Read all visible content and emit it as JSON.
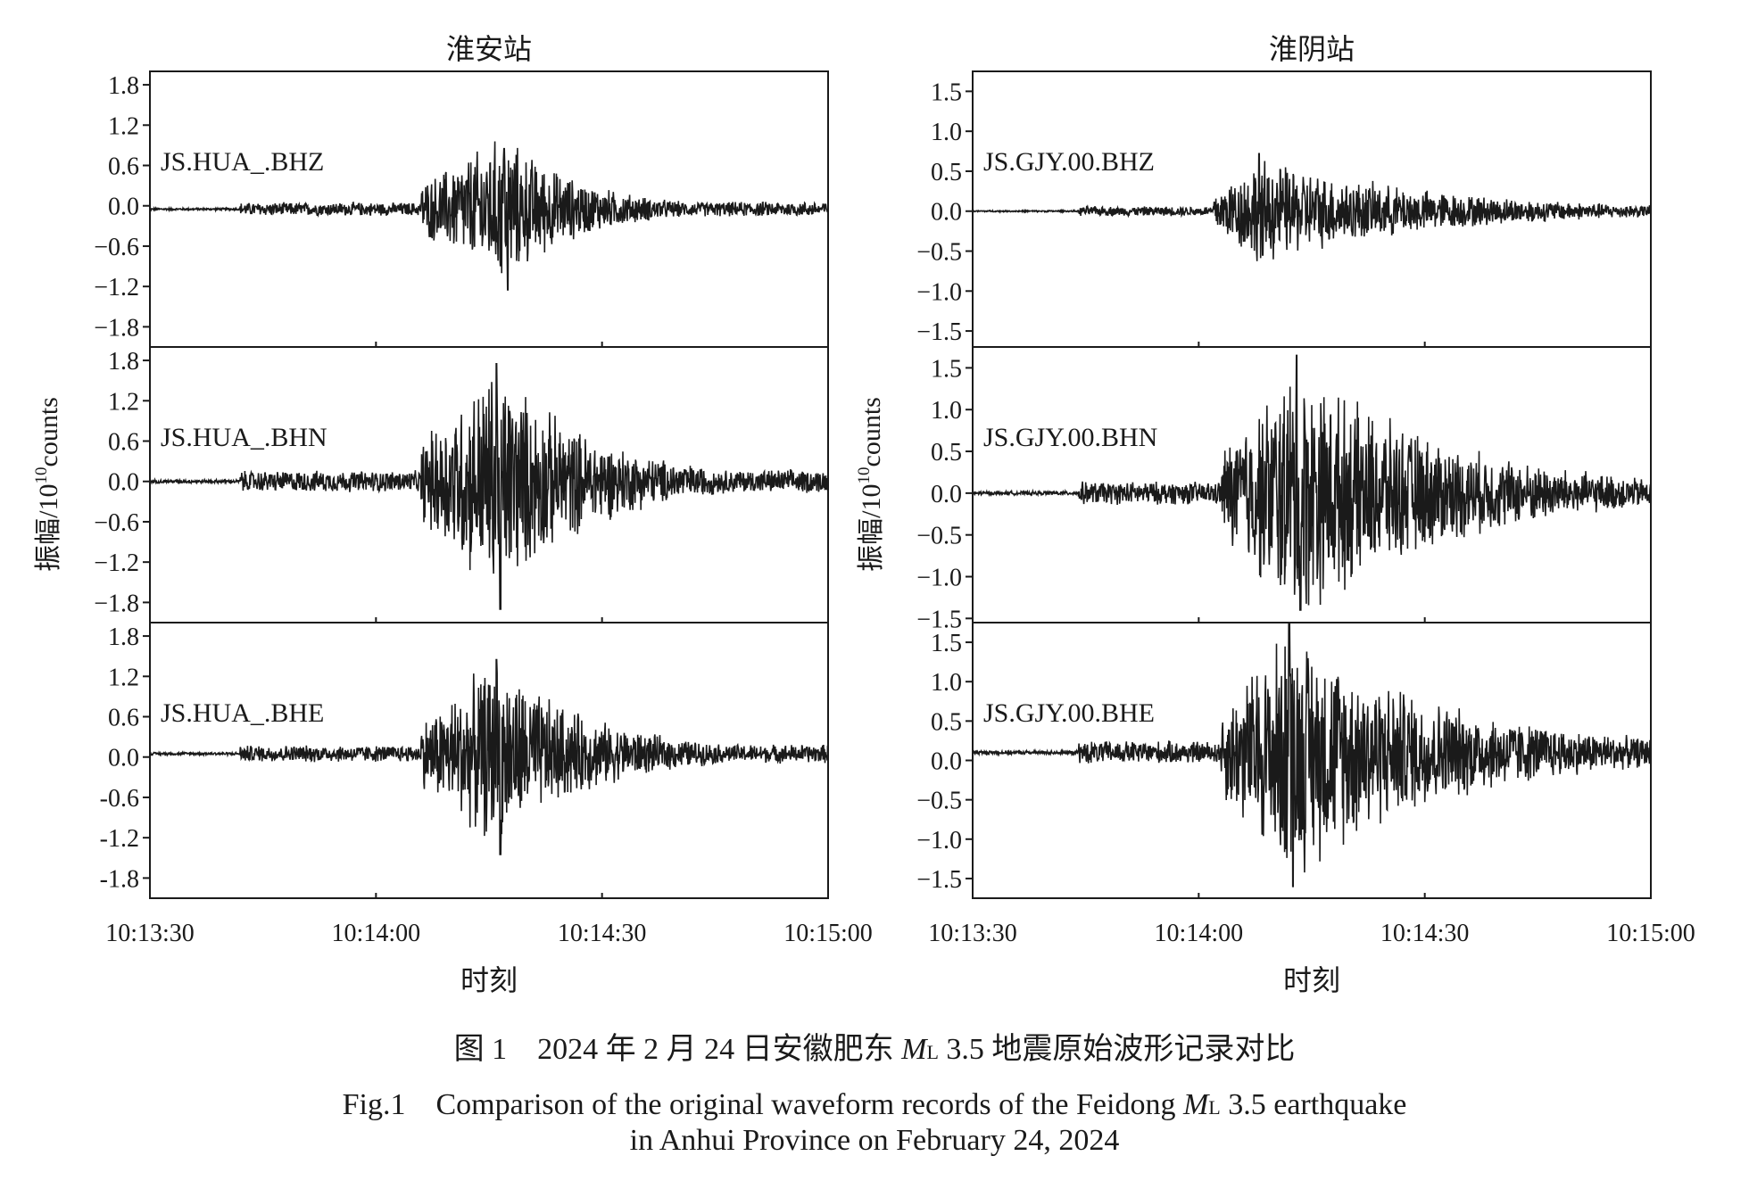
{
  "chart_data": [
    {
      "type": "line",
      "title": "淮安站",
      "xlabel": "时刻",
      "ylabel_main": "振幅/10",
      "ylabel_exp": "10",
      "ylabel_tail": "counts",
      "x_ticks": [
        "10:13:30",
        "10:14:00",
        "10:14:30",
        "10:15:00"
      ],
      "x_range": [
        "10:13:30",
        "10:15:00"
      ],
      "panels": [
        {
          "label": "JS.HUA_.BHZ",
          "ylim": [
            -2.1,
            2.0
          ],
          "y_ticks": [
            1.8,
            1.2,
            0.6,
            0.0,
            -0.6,
            -1.2,
            -1.8
          ],
          "y_tick_labels": [
            "1.8",
            "1.2",
            "0.6",
            "0.0",
            "−0.6",
            "−1.2",
            "−1.8"
          ],
          "trace": {
            "baseline": -0.05,
            "p_onset": "10:13:42",
            "s_onset": "10:14:06",
            "peak_time": "10:14:17",
            "peak_amplitude": 0.9,
            "min_amplitude": -1.2,
            "coda_end": "10:14:40"
          }
        },
        {
          "label": "JS.HUA_.BHN",
          "ylim": [
            -2.1,
            2.0
          ],
          "y_ticks": [
            1.8,
            1.2,
            0.6,
            0.0,
            -0.6,
            -1.2,
            -1.8
          ],
          "y_tick_labels": [
            "1.8",
            "1.2",
            "0.6",
            "0.0",
            "−0.6",
            "−1.2",
            "−1.8"
          ],
          "trace": {
            "baseline": 0.0,
            "p_onset": "10:13:42",
            "s_onset": "10:14:06",
            "peak_time": "10:14:16",
            "peak_amplitude": 1.75,
            "min_amplitude": -1.9,
            "coda_end": "10:14:45"
          }
        },
        {
          "label": "JS.HUA_.BHE",
          "ylim": [
            -2.1,
            2.0
          ],
          "y_ticks": [
            1.8,
            1.2,
            0.6,
            0.0,
            -0.6,
            -1.2,
            -1.8
          ],
          "y_tick_labels": [
            "1.8",
            "1.2",
            "0.6",
            "0.0",
            "-0.6",
            "-1.2",
            "-1.8"
          ],
          "trace": {
            "baseline": 0.05,
            "p_onset": "10:13:42",
            "s_onset": "10:14:06",
            "peak_time": "10:14:16",
            "peak_amplitude": 1.4,
            "min_amplitude": -1.5,
            "coda_end": "10:14:45"
          }
        }
      ]
    },
    {
      "type": "line",
      "title": "淮阴站",
      "xlabel": "时刻",
      "ylabel_main": "振幅/10",
      "ylabel_exp": "10",
      "ylabel_tail": "counts",
      "x_ticks": [
        "10:13:30",
        "10:14:00",
        "10:14:30",
        "10:15:00"
      ],
      "x_range": [
        "10:13:30",
        "10:15:00"
      ],
      "panels": [
        {
          "label": "JS.GJY.00.BHZ",
          "ylim": [
            -1.7,
            1.75
          ],
          "y_ticks": [
            1.5,
            1.0,
            0.5,
            0.0,
            -0.5,
            -1.0,
            -1.5
          ],
          "y_tick_labels": [
            "1.5",
            "1.0",
            "0.5",
            "0.0",
            "−0.5",
            "−1.0",
            "−1.5"
          ],
          "trace": {
            "baseline": 0.0,
            "p_onset": "10:13:44",
            "s_onset": "10:14:02",
            "peak_time": "10:14:08",
            "peak_amplitude": 0.72,
            "min_amplitude": -0.55,
            "coda_end": "10:15:00"
          }
        },
        {
          "label": "JS.GJY.00.BHN",
          "ylim": [
            -1.55,
            1.75
          ],
          "y_ticks": [
            1.5,
            1.0,
            0.5,
            0.0,
            -0.5,
            -1.0,
            -1.5
          ],
          "y_tick_labels": [
            "1.5",
            "1.0",
            "0.5",
            "0.0",
            "−0.5",
            "−1.0",
            "−1.5"
          ],
          "trace": {
            "baseline": 0.0,
            "p_onset": "10:13:44",
            "s_onset": "10:14:03",
            "peak_time": "10:14:13",
            "peak_amplitude": 1.65,
            "min_amplitude": -1.4,
            "coda_end": "10:15:00"
          }
        },
        {
          "label": "JS.GJY.00.BHE",
          "ylim": [
            -1.75,
            1.75
          ],
          "y_ticks": [
            1.5,
            1.0,
            0.5,
            0.0,
            -0.5,
            -1.0,
            -1.5
          ],
          "y_tick_labels": [
            "1.5",
            "1.0",
            "0.5",
            "0.0",
            "−0.5",
            "−1.0",
            "−1.5"
          ],
          "trace": {
            "baseline": 0.1,
            "p_onset": "10:13:44",
            "s_onset": "10:14:03",
            "peak_time": "10:14:12",
            "peak_amplitude": 1.75,
            "min_amplitude": -1.7,
            "coda_end": "10:15:00"
          }
        }
      ]
    }
  ],
  "caption": {
    "zh": {
      "pre": "图 1　2024 年 2 月 24 日安徽肥东 ",
      "m": "M",
      "sub": "L",
      "post": " 3.5 地震原始波形记录对比"
    },
    "en_line1": {
      "pre": "Fig.1　Comparison of the original waveform records of the Feidong ",
      "m": "M",
      "sub": "L",
      "post": " 3.5 earthquake"
    },
    "en_line2": "in Anhui Province on February 24, 2024"
  }
}
